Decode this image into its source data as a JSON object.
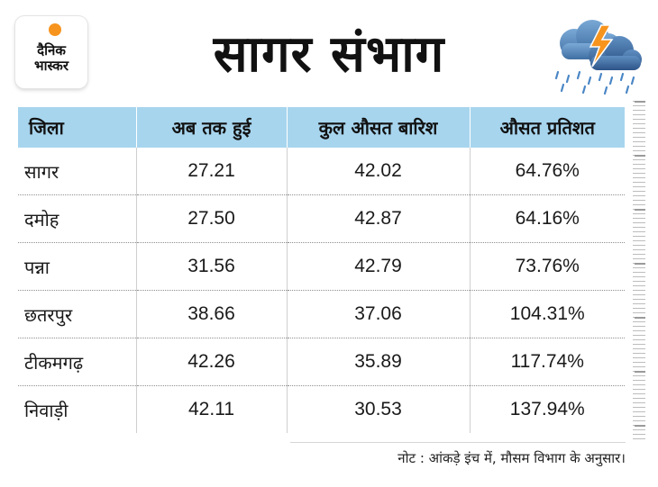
{
  "brand": {
    "logo_text": "दैनिक भास्कर"
  },
  "title": "सागर संभाग",
  "icons": {
    "weather": "storm-cloud-rain-icon",
    "logo_sun": "sun-dot-icon"
  },
  "colors": {
    "header_bg": "#a7d5ee",
    "logo_sun": "#f7941d",
    "bolt": "#f7941d"
  },
  "table": {
    "headers": [
      "जिला",
      "अब तक हुई",
      "कुल औसत बारिश",
      "औसत प्रतिशत"
    ],
    "rows": [
      [
        "सागर",
        "27.21",
        "42.02",
        "64.76%"
      ],
      [
        "दमोह",
        "27.50",
        "42.87",
        "64.16%"
      ],
      [
        "पन्ना",
        "31.56",
        "42.79",
        "73.76%"
      ],
      [
        "छतरपुर",
        "38.66",
        "37.06",
        "104.31%"
      ],
      [
        "टीकमगढ़",
        "42.26",
        "35.89",
        "117.74%"
      ],
      [
        "निवाड़ी",
        "42.11",
        "30.53",
        "137.94%"
      ]
    ]
  },
  "note": "नोट : आंकड़े इंच में, मौसम विभाग के अनुसार।"
}
